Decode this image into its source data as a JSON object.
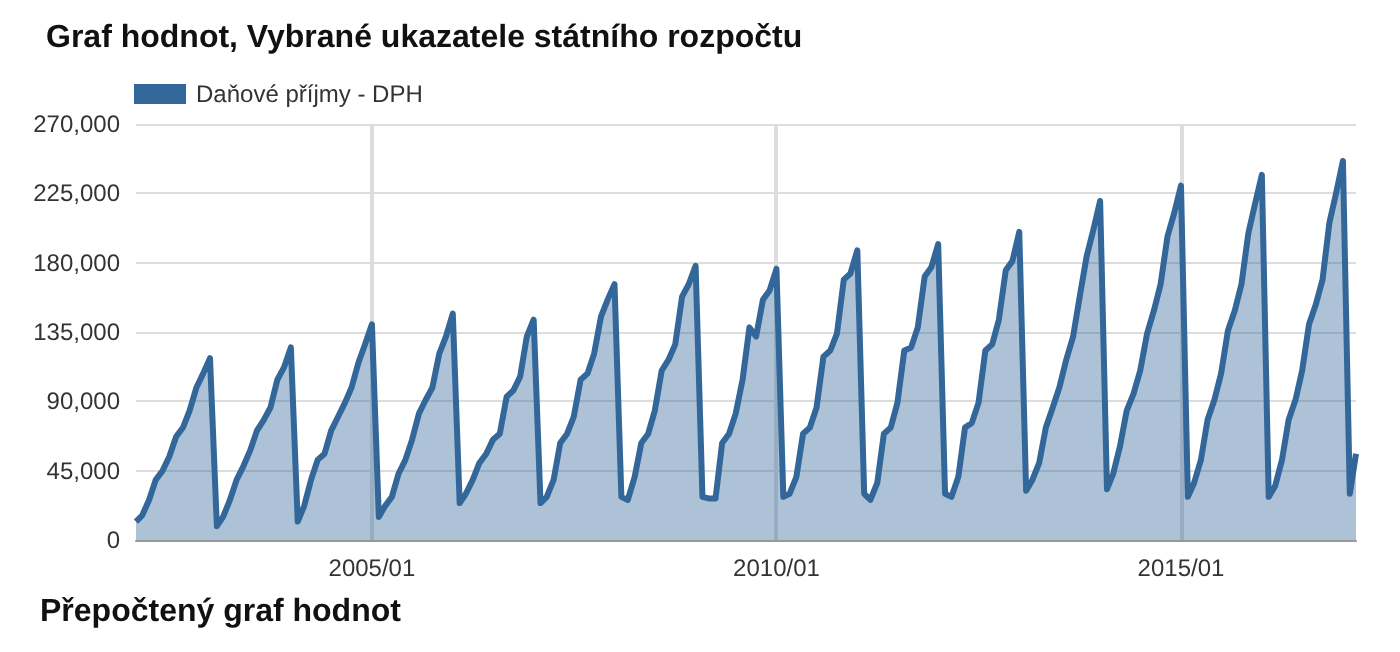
{
  "chart_data": {
    "type": "area",
    "title": "Graf hodnot, Vybrané ukazatele státního rozpočtu",
    "annotations": [
      "Přepočtený graf hodnot"
    ],
    "x": [
      "2002-02",
      "2002-03",
      "2002-04",
      "2002-05",
      "2002-06",
      "2002-07",
      "2002-08",
      "2002-09",
      "2002-10",
      "2002-11",
      "2002-12",
      "2003-01",
      "2003-02",
      "2003-03",
      "2003-04",
      "2003-05",
      "2003-06",
      "2003-07",
      "2003-08",
      "2003-09",
      "2003-10",
      "2003-11",
      "2003-12",
      "2004-01",
      "2004-02",
      "2004-03",
      "2004-04",
      "2004-05",
      "2004-06",
      "2004-07",
      "2004-08",
      "2004-09",
      "2004-10",
      "2004-11",
      "2004-12",
      "2005-01",
      "2005-02",
      "2005-03",
      "2005-04",
      "2005-05",
      "2005-06",
      "2005-07",
      "2005-08",
      "2005-09",
      "2005-10",
      "2005-11",
      "2005-12",
      "2006-01",
      "2006-02",
      "2006-03",
      "2006-04",
      "2006-05",
      "2006-06",
      "2006-07",
      "2006-08",
      "2006-09",
      "2006-10",
      "2006-11",
      "2006-12",
      "2007-01",
      "2007-02",
      "2007-03",
      "2007-04",
      "2007-05",
      "2007-06",
      "2007-07",
      "2007-08",
      "2007-09",
      "2007-10",
      "2007-11",
      "2007-12",
      "2008-01",
      "2008-02",
      "2008-03",
      "2008-04",
      "2008-05",
      "2008-06",
      "2008-07",
      "2008-08",
      "2008-09",
      "2008-10",
      "2008-11",
      "2008-12",
      "2009-01",
      "2009-02",
      "2009-03",
      "2009-04",
      "2009-05",
      "2009-06",
      "2009-07",
      "2009-08",
      "2009-09",
      "2009-10",
      "2009-11",
      "2009-12",
      "2010-01",
      "2010-02",
      "2010-03",
      "2010-04",
      "2010-05",
      "2010-06",
      "2010-07",
      "2010-08",
      "2010-09",
      "2010-10",
      "2010-11",
      "2010-12",
      "2011-01",
      "2011-02",
      "2011-03",
      "2011-04",
      "2011-05",
      "2011-06",
      "2011-07",
      "2011-08",
      "2011-09",
      "2011-10",
      "2011-11",
      "2011-12",
      "2012-01",
      "2012-02",
      "2012-03",
      "2012-04",
      "2012-05",
      "2012-06",
      "2012-07",
      "2012-08",
      "2012-09",
      "2012-10",
      "2012-11",
      "2012-12",
      "2013-01",
      "2013-02",
      "2013-03",
      "2013-04",
      "2013-05",
      "2013-06",
      "2013-07",
      "2013-08",
      "2013-09",
      "2013-10",
      "2013-11",
      "2013-12",
      "2014-01",
      "2014-02",
      "2014-03",
      "2014-04",
      "2014-05",
      "2014-06",
      "2014-07",
      "2014-08",
      "2014-09",
      "2014-10",
      "2014-11",
      "2014-12",
      "2015-01",
      "2015-02",
      "2015-03",
      "2015-04",
      "2015-05",
      "2015-06",
      "2015-07",
      "2015-08",
      "2015-09",
      "2015-10",
      "2015-11",
      "2015-12",
      "2016-01",
      "2016-02",
      "2016-03",
      "2016-04",
      "2016-05",
      "2016-06",
      "2016-07",
      "2016-08",
      "2016-09",
      "2016-10",
      "2016-11",
      "2016-12",
      "2017-01",
      "2017-02",
      "2017-03"
    ],
    "series": [
      {
        "name": "Daňové příjmy - DPH",
        "color": "#336699",
        "values": [
          12000,
          16000,
          26000,
          39000,
          45000,
          54000,
          67000,
          73000,
          84000,
          99000,
          108000,
          118000,
          9000,
          15000,
          26000,
          39000,
          48000,
          58000,
          71000,
          78000,
          86000,
          104000,
          112000,
          125000,
          12000,
          22000,
          39000,
          52000,
          56000,
          71000,
          80000,
          89000,
          99000,
          115000,
          127000,
          140000,
          15000,
          22000,
          28000,
          43000,
          52000,
          65000,
          82000,
          91000,
          99000,
          121000,
          132000,
          147000,
          24000,
          30000,
          39000,
          50000,
          56000,
          65000,
          69000,
          93000,
          97000,
          106000,
          132000,
          143000,
          24000,
          28000,
          39000,
          63000,
          69000,
          80000,
          104000,
          108000,
          121000,
          145000,
          156000,
          166000,
          28000,
          26000,
          41000,
          63000,
          69000,
          84000,
          110000,
          117000,
          127000,
          158000,
          166000,
          178000,
          28000,
          27000,
          27000,
          63000,
          69000,
          82000,
          104000,
          138000,
          132000,
          156000,
          162000,
          176000,
          28000,
          30000,
          41000,
          69000,
          73000,
          86000,
          119000,
          123000,
          134000,
          169000,
          173000,
          188000,
          30000,
          26000,
          37000,
          69000,
          73000,
          89000,
          123000,
          125000,
          138000,
          171000,
          177000,
          192000,
          30000,
          28000,
          41000,
          73000,
          76000,
          89000,
          123000,
          127000,
          143000,
          175000,
          181000,
          200000,
          32000,
          39000,
          50000,
          73000,
          86000,
          99000,
          117000,
          132000,
          158000,
          184000,
          201000,
          220000,
          33000,
          43000,
          61000,
          84000,
          95000,
          110000,
          134000,
          149000,
          166000,
          197000,
          212000,
          230000,
          28000,
          37000,
          52000,
          78000,
          91000,
          108000,
          136000,
          149000,
          166000,
          199000,
          218000,
          237000,
          28000,
          35000,
          52000,
          78000,
          91000,
          110000,
          140000,
          153000,
          169000,
          206000,
          225000,
          246000,
          30000,
          56000
        ]
      }
    ],
    "xlim": [
      "2002-02",
      "2017-03"
    ],
    "xticks": [
      {
        "value": "2005-01",
        "label": "2005/01"
      },
      {
        "value": "2010-01",
        "label": "2010/01"
      },
      {
        "value": "2015-01",
        "label": "2015/01"
      }
    ],
    "ylim": [
      0,
      270000
    ],
    "yticks": [
      0,
      {
        "value": 45000,
        "label": "45,000"
      },
      {
        "value": 90000,
        "label": "90,000"
      },
      {
        "value": 135000,
        "label": "135,000"
      },
      {
        "value": 180000,
        "label": "180,000"
      },
      {
        "value": 225000,
        "label": "225,000"
      },
      {
        "value": 270000,
        "label": "270,000"
      }
    ],
    "grid": true,
    "legend": "top left",
    "marker": "none",
    "line_style": "solid"
  }
}
